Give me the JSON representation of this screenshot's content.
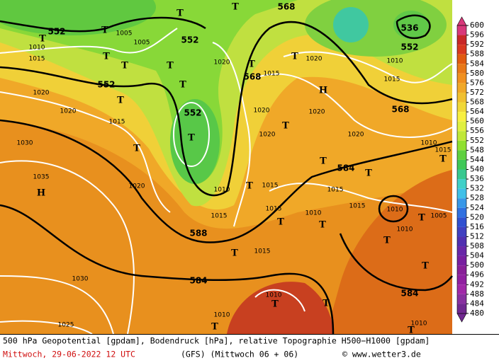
{
  "footer": {
    "title": "500 hPa Geopotential [gpdam], Bodendruck [hPa], relative Topographie H500−H1000 [gpdam]",
    "date": "Mittwoch, 29-06-2022  12 UTC",
    "run": "(GFS)  (Mittwoch 06 + 06)",
    "credit": "© www.wetter3.de"
  },
  "colorbar": {
    "ticks": [
      600,
      596,
      592,
      588,
      584,
      580,
      576,
      572,
      568,
      564,
      560,
      556,
      552,
      548,
      544,
      540,
      536,
      532,
      528,
      524,
      520,
      516,
      512,
      508,
      504,
      500,
      496,
      492,
      488,
      484,
      480
    ],
    "colors": [
      "#d8387a",
      "#c82828",
      "#d83820",
      "#e05a10",
      "#e87818",
      "#f09020",
      "#f0a828",
      "#f0c030",
      "#f0d838",
      "#f8f040",
      "#e0f040",
      "#c0e838",
      "#90e030",
      "#60d040",
      "#40c858",
      "#38c890",
      "#40d0c8",
      "#40c0e8",
      "#3898e8",
      "#3070e0",
      "#3050d0",
      "#4040c0",
      "#5030b0",
      "#6828a8",
      "#7820a0",
      "#882098",
      "#9020a0",
      "#a028a8",
      "#8830a0",
      "#702890"
    ]
  },
  "map": {
    "labels": [
      "552",
      "552",
      "552",
      "552",
      "552",
      "536",
      "568",
      "568",
      "568",
      "584",
      "588",
      "584",
      "584",
      "1010",
      "1015",
      "1005",
      "1005",
      "1020",
      "1020",
      "1015",
      "1030",
      "1035",
      "1020",
      "1030",
      "1025",
      "1020",
      "1015",
      "1020",
      "1020",
      "1020",
      "1020",
      "1020",
      "1015",
      "1010",
      "1015",
      "1015",
      "1010",
      "1015",
      "1015",
      "1015",
      "1010",
      "1010",
      "1005",
      "1010",
      "1010",
      "1010",
      "1015",
      "1010",
      "1015",
      "1010",
      "T",
      "T",
      "T",
      "T",
      "T",
      "T",
      "T",
      "T",
      "T",
      "T",
      "T",
      "T",
      "T",
      "T",
      "T",
      "T",
      "T",
      "T",
      "T",
      "T",
      "T",
      "T",
      "T",
      "T",
      "T",
      "T",
      "T",
      "T",
      "H",
      "H"
    ]
  }
}
